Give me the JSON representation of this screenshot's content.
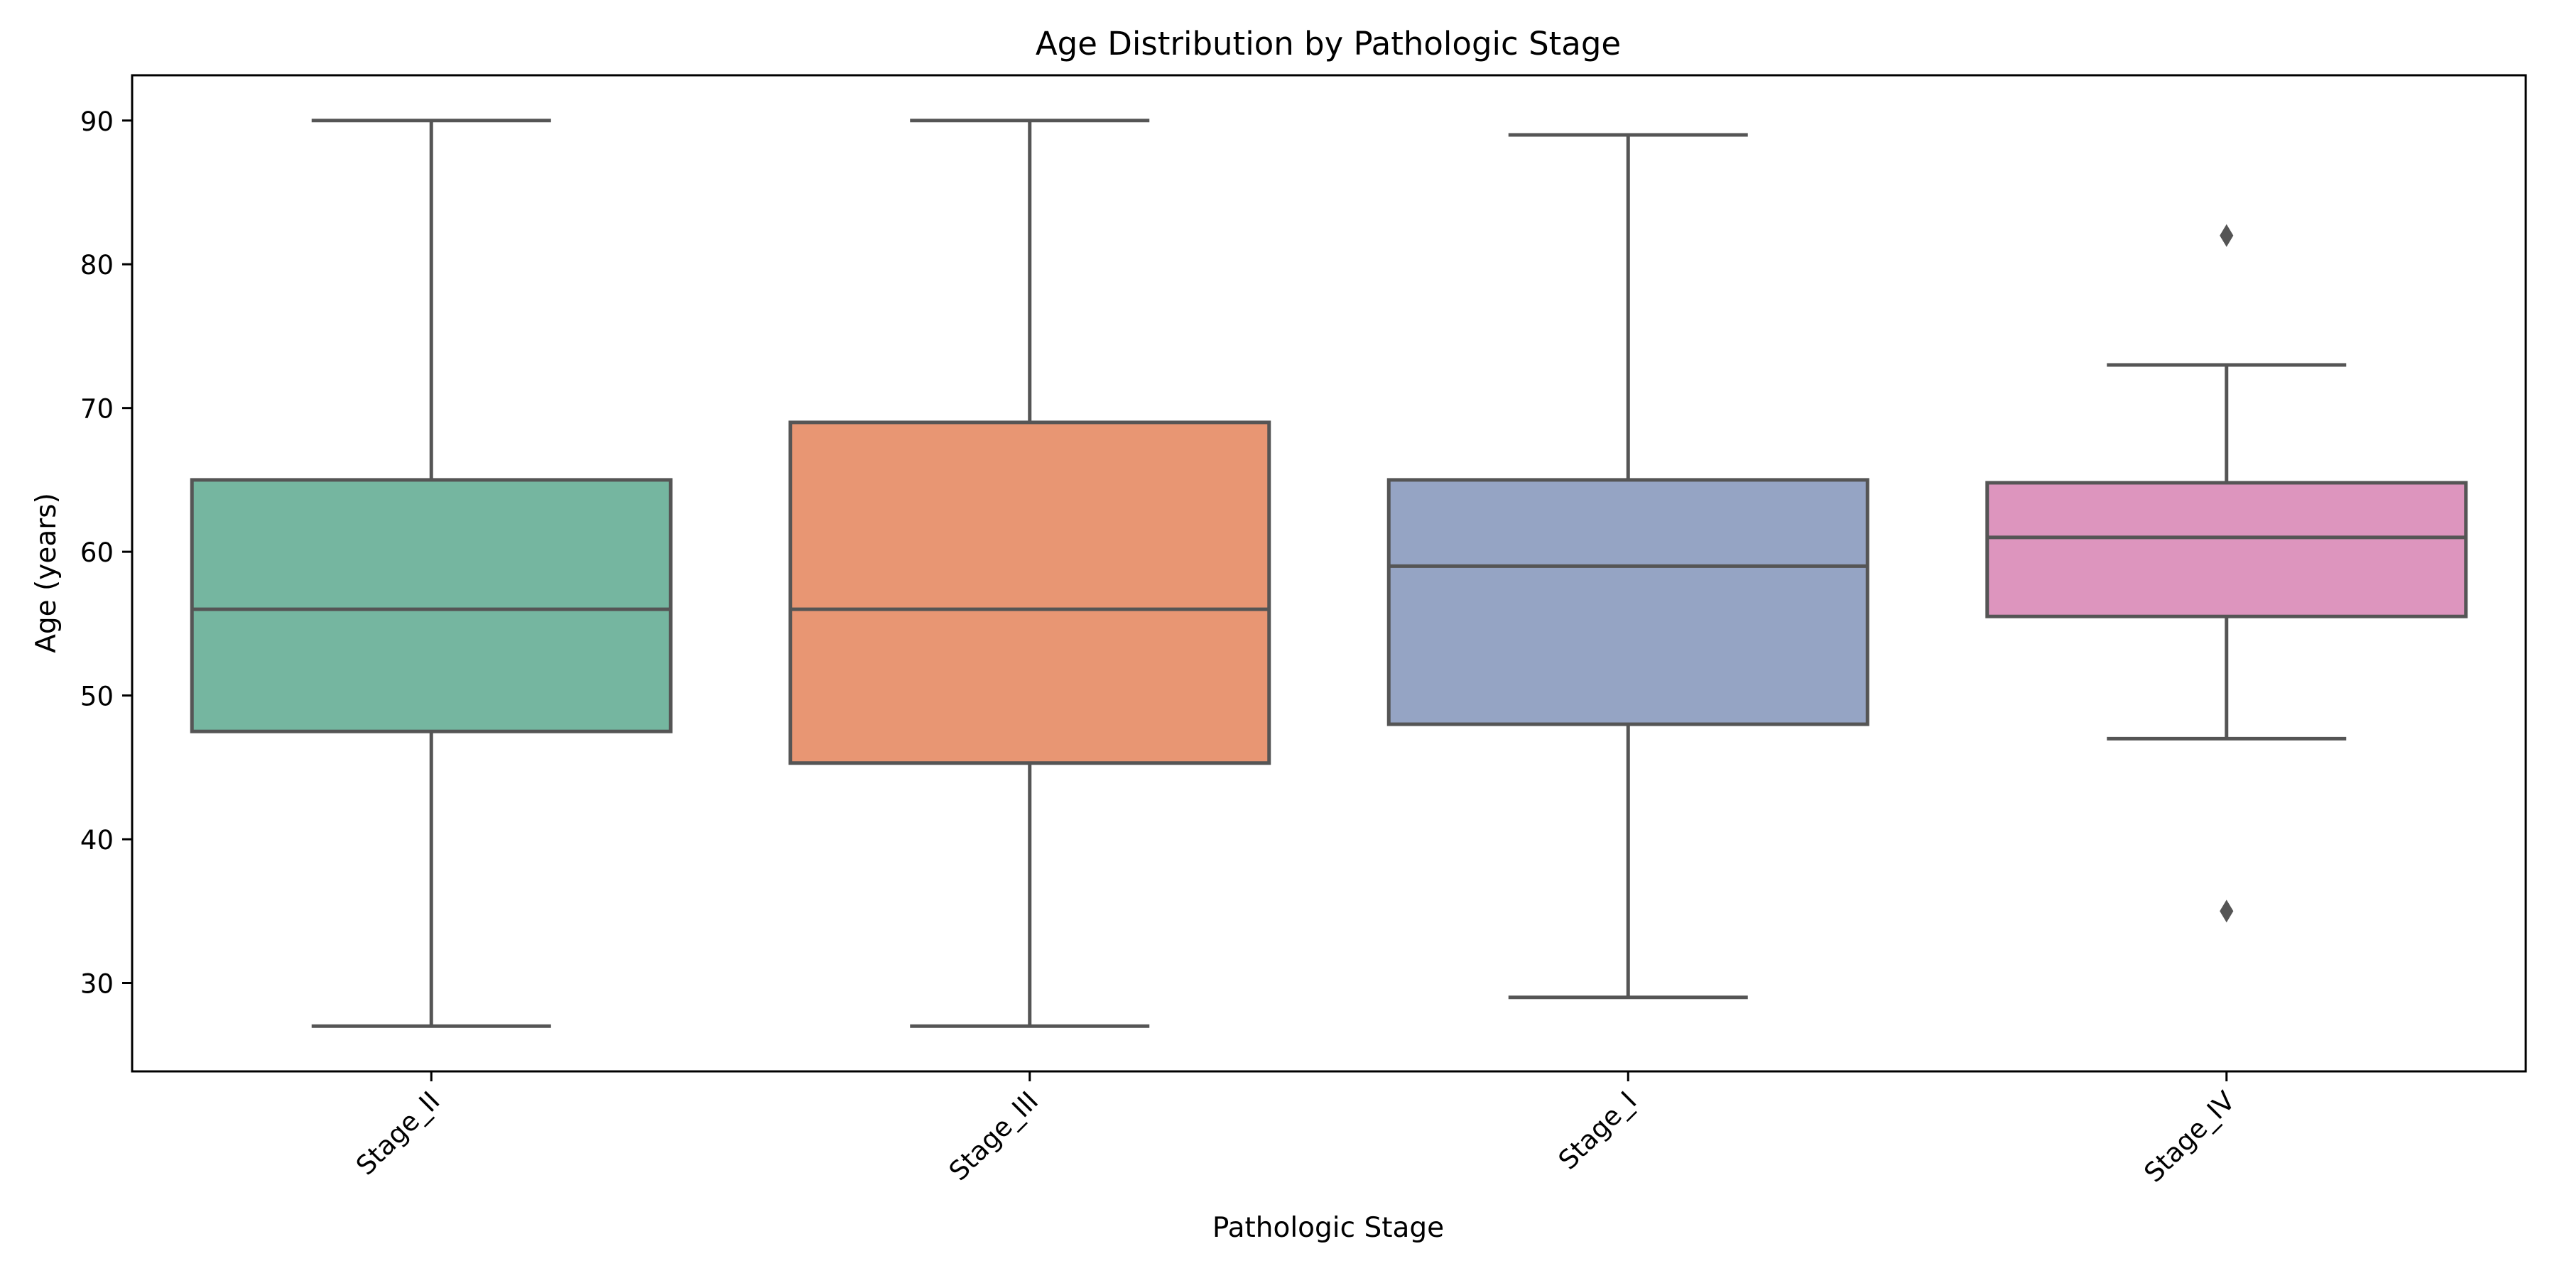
{
  "chart_data": {
    "type": "box",
    "title": "Age Distribution by Pathologic Stage",
    "xlabel": "Pathologic Stage",
    "ylabel": "Age (years)",
    "ylim": [
      23.85,
      93.15
    ],
    "yticks": [
      30,
      40,
      50,
      60,
      70,
      80,
      90
    ],
    "grid": false,
    "categories": [
      "Stage_II",
      "Stage_III",
      "Stage_I",
      "Stage_IV"
    ],
    "boxes": [
      {
        "category": "Stage_II",
        "whisker_low": 27,
        "q1": 47.5,
        "median": 56,
        "q3": 65,
        "whisker_high": 90,
        "outliers": [],
        "color": "#75b6a0"
      },
      {
        "category": "Stage_III",
        "whisker_low": 27,
        "q1": 45.3,
        "median": 56,
        "q3": 69,
        "whisker_high": 90,
        "outliers": [],
        "color": "#e89673"
      },
      {
        "category": "Stage_I",
        "whisker_low": 29,
        "q1": 48,
        "median": 59,
        "q3": 65,
        "whisker_high": 89,
        "outliers": [],
        "color": "#95a4c4"
      },
      {
        "category": "Stage_IV",
        "whisker_low": 47,
        "q1": 55.5,
        "median": 61,
        "q3": 64.8,
        "whisker_high": 73,
        "outliers": [
          82,
          35
        ],
        "color": "#dd95be"
      }
    ],
    "line_color": "#555555"
  }
}
